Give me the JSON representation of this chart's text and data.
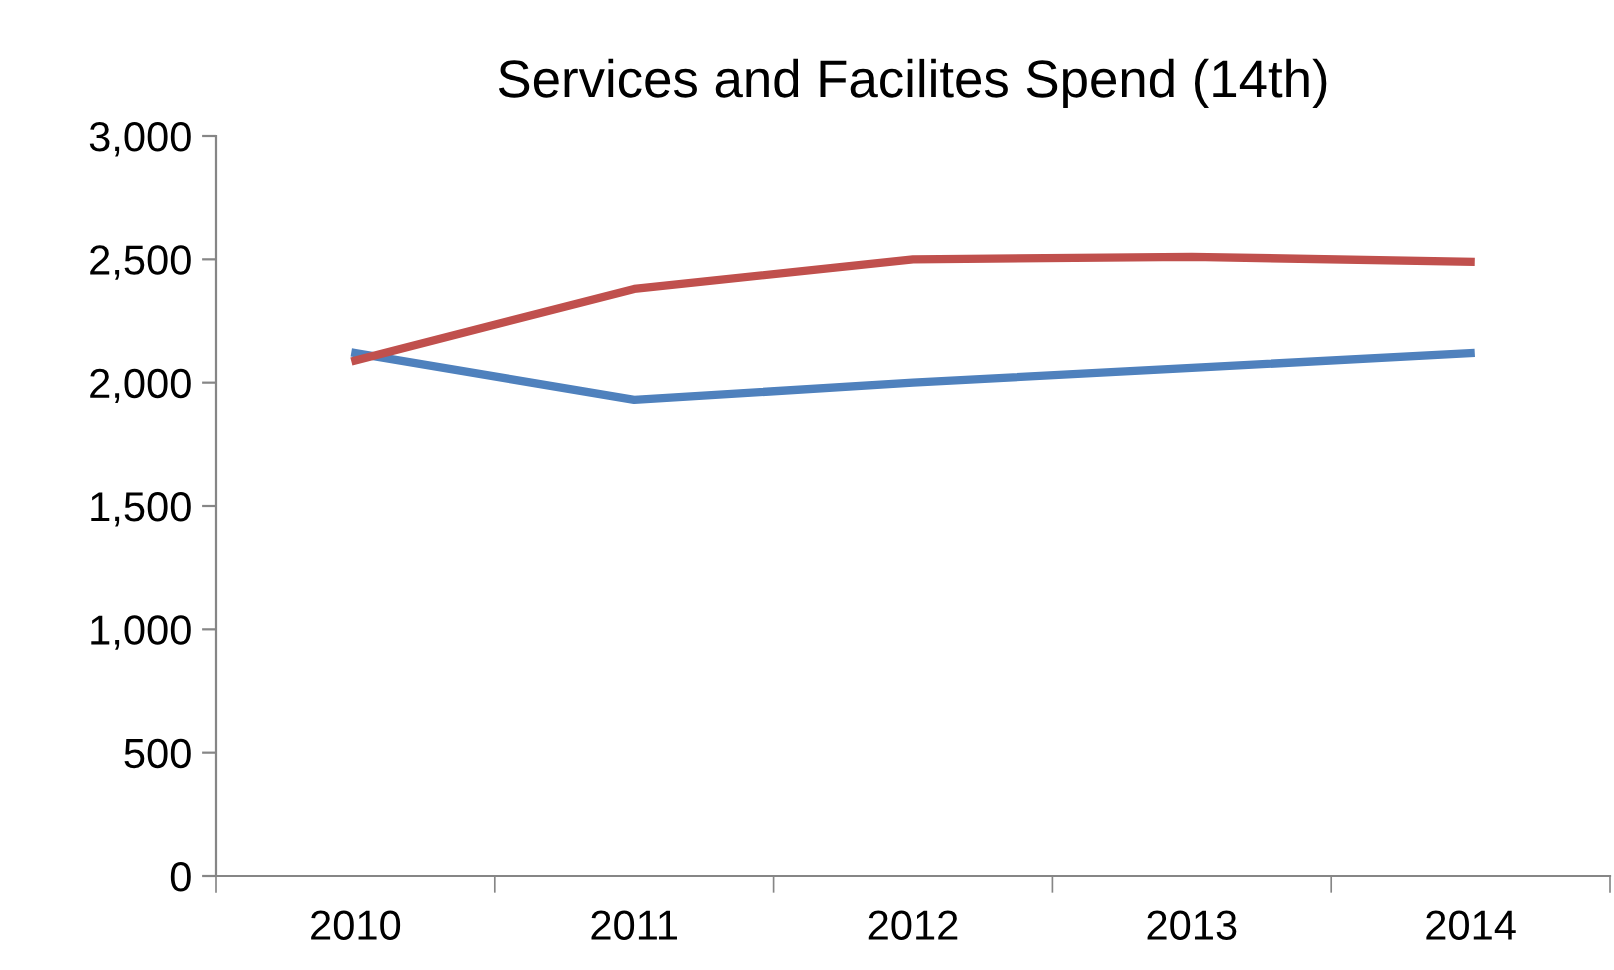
{
  "chart_data": {
    "type": "line",
    "title": "Services and Facilites Spend (14th)",
    "categories": [
      "2010",
      "2011",
      "2012",
      "2013",
      "2014"
    ],
    "series": [
      {
        "color": "#4f81bd",
        "values": [
          2120,
          1930,
          2000,
          2060,
          2120
        ]
      },
      {
        "color": "#c0504d",
        "values": [
          2090,
          2380,
          2500,
          2510,
          2490
        ]
      }
    ],
    "ylim": [
      0,
      3000
    ],
    "yticks": [
      {
        "value": 0,
        "label": "0"
      },
      {
        "value": 500,
        "label": "500"
      },
      {
        "value": 1000,
        "label": "1,000"
      },
      {
        "value": 1500,
        "label": "1,500"
      },
      {
        "value": 2000,
        "label": "2,000"
      },
      {
        "value": 2500,
        "label": "2,500"
      },
      {
        "value": 3000,
        "label": "3,000"
      }
    ],
    "grid": false,
    "marker": "none",
    "line_style": "solid"
  }
}
